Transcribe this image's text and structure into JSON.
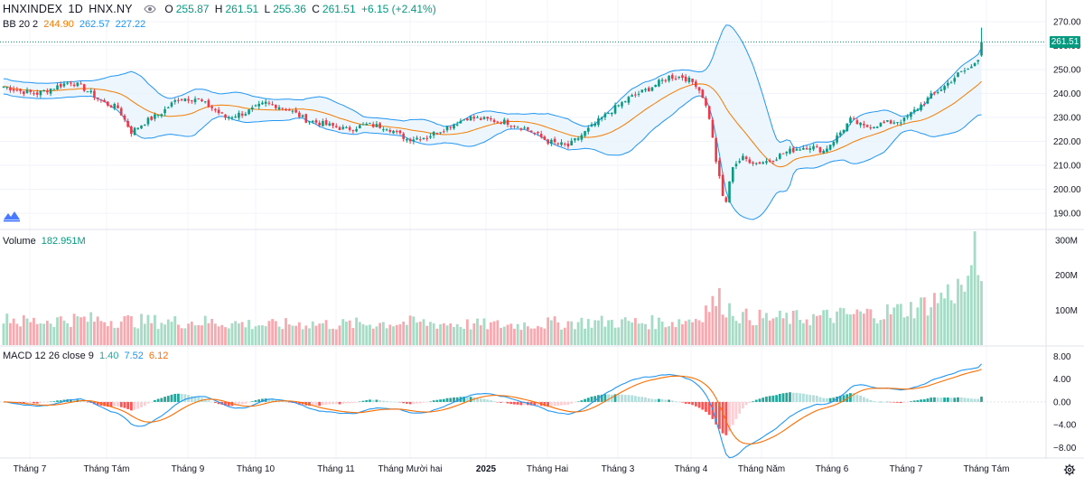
{
  "header": {
    "symbol": "HNXINDEX",
    "interval": "1D",
    "exchange": "HNX.NY",
    "open_label": "O",
    "open": "255.87",
    "high_label": "H",
    "high": "261.51",
    "low_label": "L",
    "low": "255.36",
    "close_label": "C",
    "close": "261.51",
    "change": "+6.15 (+2.41%)",
    "last_price_tag": "261.51"
  },
  "indicators": {
    "bb": {
      "name": "BB 20 2",
      "basis": "244.90",
      "upper": "262.57",
      "lower": "227.22"
    },
    "volume": {
      "name": "Volume",
      "value": "182.951M"
    },
    "macd": {
      "name": "MACD 12 26 close 9",
      "hist": "1.40",
      "macd": "7.52",
      "signal": "6.12"
    }
  },
  "colors": {
    "up": "#089981",
    "down": "#f23645",
    "up_volume": "#a5dcc6",
    "down_volume": "#f7a9af",
    "bb_band": "#2196f3",
    "bb_basis": "#f57c00",
    "bb_fill": "#e9f3fc",
    "macd_line": "#2196f3",
    "signal_line": "#ff6d00",
    "hist_up_strong": "#26a69a",
    "hist_up_weak": "#b2dfdb",
    "hist_down_strong": "#ff5252",
    "hist_down_weak": "#ffcdd2"
  },
  "icons": {
    "visibility": "eye-icon",
    "logo": "tradingview-logo-icon",
    "settings": "gear-icon"
  },
  "chart_data": {
    "type": "candlestick",
    "title": "HNXINDEX · 1D · HNX.NY",
    "x_labels": [
      "Tháng 7",
      "Tháng Tám",
      "Tháng 9",
      "Tháng 10",
      "Tháng 11",
      "Tháng Mười hai",
      "2025",
      "Tháng Hai",
      "Tháng 3",
      "Tháng 4",
      "Tháng Năm",
      "Tháng 6",
      "Tháng 7",
      "Tháng Tám"
    ],
    "price_ticks": [
      "270.00",
      "260.00",
      "250.00",
      "240.00",
      "230.00",
      "220.00",
      "210.00",
      "200.00",
      "190.00"
    ],
    "price_range": [
      184,
      273
    ],
    "volume_ticks": [
      "300M",
      "200M",
      "100M"
    ],
    "volume_range": [
      0,
      320
    ],
    "macd_ticks": [
      "8.00",
      "4.00",
      "0.00",
      "−4.00",
      "−8.00"
    ],
    "macd_range": [
      -10,
      9.5
    ],
    "close_anchors": [
      [
        0,
        243
      ],
      [
        5,
        241
      ],
      [
        10,
        240
      ],
      [
        14,
        242
      ],
      [
        20,
        245
      ],
      [
        24,
        242
      ],
      [
        30,
        236
      ],
      [
        34,
        234
      ],
      [
        38,
        224
      ],
      [
        42,
        228
      ],
      [
        47,
        232
      ],
      [
        52,
        238
      ],
      [
        57,
        238
      ],
      [
        62,
        234
      ],
      [
        66,
        230
      ],
      [
        72,
        232
      ],
      [
        78,
        236
      ],
      [
        84,
        234
      ],
      [
        90,
        229
      ],
      [
        96,
        227
      ],
      [
        102,
        225
      ],
      [
        108,
        227
      ],
      [
        114,
        226
      ],
      [
        120,
        221
      ],
      [
        126,
        222
      ],
      [
        132,
        226
      ],
      [
        138,
        230
      ],
      [
        144,
        229
      ],
      [
        150,
        228
      ],
      [
        156,
        225
      ],
      [
        162,
        220
      ],
      [
        168,
        218
      ],
      [
        174,
        225
      ],
      [
        180,
        232
      ],
      [
        186,
        238
      ],
      [
        192,
        242
      ],
      [
        198,
        247
      ],
      [
        202,
        247
      ],
      [
        206,
        244
      ],
      [
        208,
        239
      ],
      [
        210,
        230
      ],
      [
        212,
        212
      ],
      [
        214,
        197
      ],
      [
        215,
        195
      ],
      [
        217,
        210
      ],
      [
        220,
        213
      ],
      [
        224,
        211
      ],
      [
        228,
        212
      ],
      [
        232,
        215
      ],
      [
        236,
        217
      ],
      [
        240,
        218
      ],
      [
        244,
        216
      ],
      [
        248,
        222
      ],
      [
        252,
        229
      ],
      [
        256,
        226
      ],
      [
        260,
        227
      ],
      [
        264,
        228
      ],
      [
        268,
        229
      ],
      [
        272,
        234
      ],
      [
        276,
        239
      ],
      [
        280,
        243
      ],
      [
        284,
        248
      ],
      [
        288,
        251
      ],
      [
        290,
        255
      ],
      [
        291,
        261.51
      ]
    ],
    "volume_anchors": [
      [
        0,
        95
      ],
      [
        5,
        70
      ],
      [
        10,
        72
      ],
      [
        20,
        78
      ],
      [
        30,
        76
      ],
      [
        40,
        72
      ],
      [
        50,
        70
      ],
      [
        60,
        70
      ],
      [
        70,
        65
      ],
      [
        80,
        60
      ],
      [
        90,
        65
      ],
      [
        100,
        62
      ],
      [
        110,
        65
      ],
      [
        120,
        68
      ],
      [
        130,
        65
      ],
      [
        140,
        62
      ],
      [
        150,
        60
      ],
      [
        160,
        65
      ],
      [
        170,
        68
      ],
      [
        180,
        70
      ],
      [
        190,
        68
      ],
      [
        200,
        70
      ],
      [
        206,
        80
      ],
      [
        210,
        120
      ],
      [
        213,
        135
      ],
      [
        216,
        110
      ],
      [
        220,
        85
      ],
      [
        230,
        80
      ],
      [
        240,
        82
      ],
      [
        250,
        90
      ],
      [
        260,
        95
      ],
      [
        270,
        110
      ],
      [
        275,
        125
      ],
      [
        280,
        150
      ],
      [
        285,
        175
      ],
      [
        288,
        185
      ],
      [
        289,
        325
      ],
      [
        290,
        200
      ],
      [
        291,
        183
      ]
    ],
    "series": [
      {
        "name": "HNXINDEX",
        "kind": "candles"
      },
      {
        "name": "BB basis",
        "kind": "line"
      },
      {
        "name": "BB upper",
        "kind": "line"
      },
      {
        "name": "BB lower",
        "kind": "line"
      },
      {
        "name": "Volume",
        "kind": "bars"
      },
      {
        "name": "MACD",
        "kind": "line"
      },
      {
        "name": "Signal",
        "kind": "line"
      },
      {
        "name": "Histogram",
        "kind": "bars"
      }
    ]
  }
}
